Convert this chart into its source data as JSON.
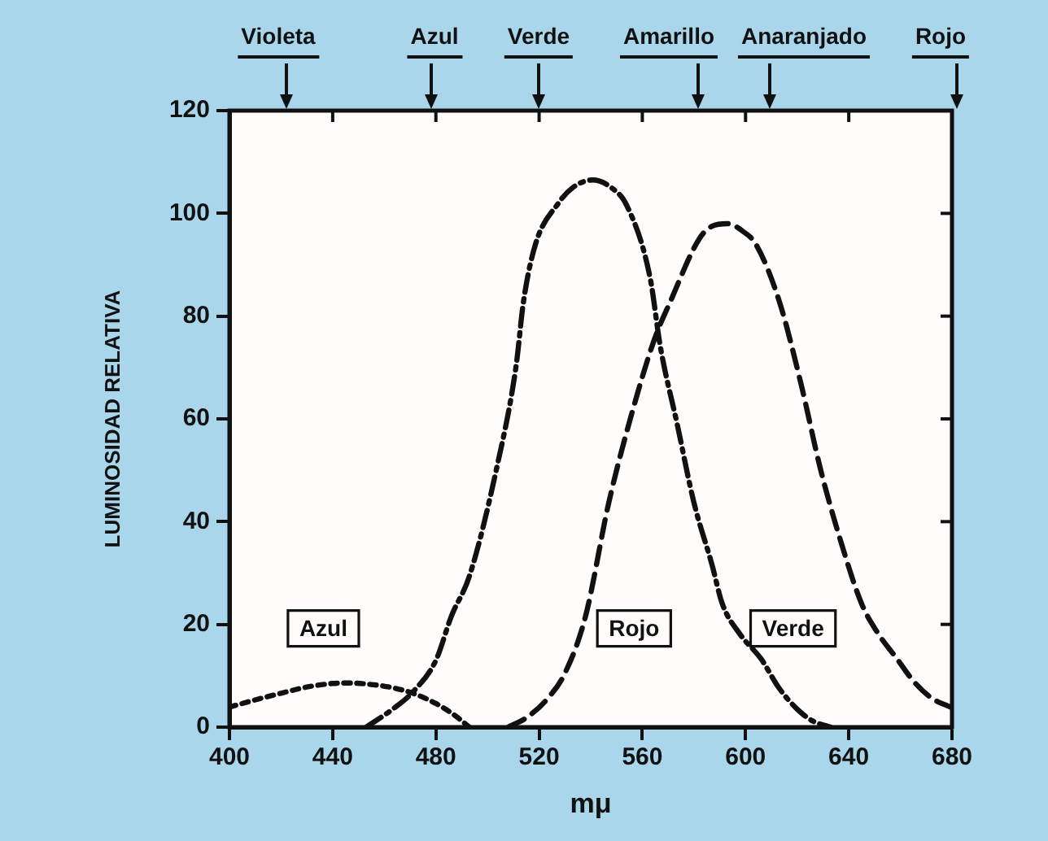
{
  "chart_data": {
    "type": "line",
    "xlabel": "mμ",
    "ylabel": "LUMINOSIDAD RELATIVA",
    "xlim": [
      400,
      680
    ],
    "xticks": [
      400,
      440,
      480,
      520,
      560,
      600,
      640,
      680
    ],
    "ylim": [
      0,
      120
    ],
    "yticks": [
      0,
      20,
      40,
      60,
      80,
      100,
      120
    ],
    "grid": false,
    "legend": false,
    "marker": "none",
    "series": [
      {
        "name": "Azul",
        "color": "#111111",
        "line_style": "dotted",
        "x": [
          400,
          410,
          420,
          430,
          440,
          446,
          455,
          463,
          471,
          480,
          487,
          493
        ],
        "values": [
          3.9,
          5.3,
          6.6,
          7.8,
          8.5,
          8.6,
          8.3,
          7.7,
          6.6,
          4.6,
          2.4,
          0
        ]
      },
      {
        "name": "Verde",
        "color": "#111111",
        "line_style": "dashdot",
        "x": [
          453,
          463,
          471,
          480,
          486,
          493,
          503.5,
          511,
          514,
          518.6,
          527.5,
          533,
          540.7,
          548,
          554,
          563,
          567,
          573.5,
          580,
          587,
          591,
          598,
          606,
          613,
          620,
          626,
          633
        ],
        "values": [
          0,
          3.4,
          6.8,
          13,
          21.6,
          29.4,
          50.3,
          70,
          83,
          94,
          102,
          105,
          106.5,
          105,
          101.5,
          87.5,
          74,
          59,
          43.7,
          31.6,
          24,
          18,
          13.3,
          7.6,
          3.5,
          1.2,
          0
        ]
      },
      {
        "name": "Rojo",
        "color": "#111111",
        "line_style": "dashed",
        "x": [
          508,
          515,
          523,
          530,
          538,
          547,
          556,
          564.7,
          571,
          582,
          587,
          593,
          599,
          604,
          613,
          621.5,
          629,
          637,
          645,
          651,
          658.7,
          665,
          672,
          680
        ],
        "values": [
          0,
          1.8,
          5.4,
          10.5,
          21.6,
          43.7,
          61.2,
          75.5,
          83,
          95,
          97.5,
          98,
          96.5,
          94,
          83,
          66.8,
          50.3,
          36,
          24,
          18.5,
          13.3,
          9,
          5.7,
          3.8
        ]
      }
    ],
    "annotations": [
      "Violeta",
      "Azul",
      "Verde",
      "Amarillo",
      "Anaranjado",
      "Rojo"
    ]
  }
}
